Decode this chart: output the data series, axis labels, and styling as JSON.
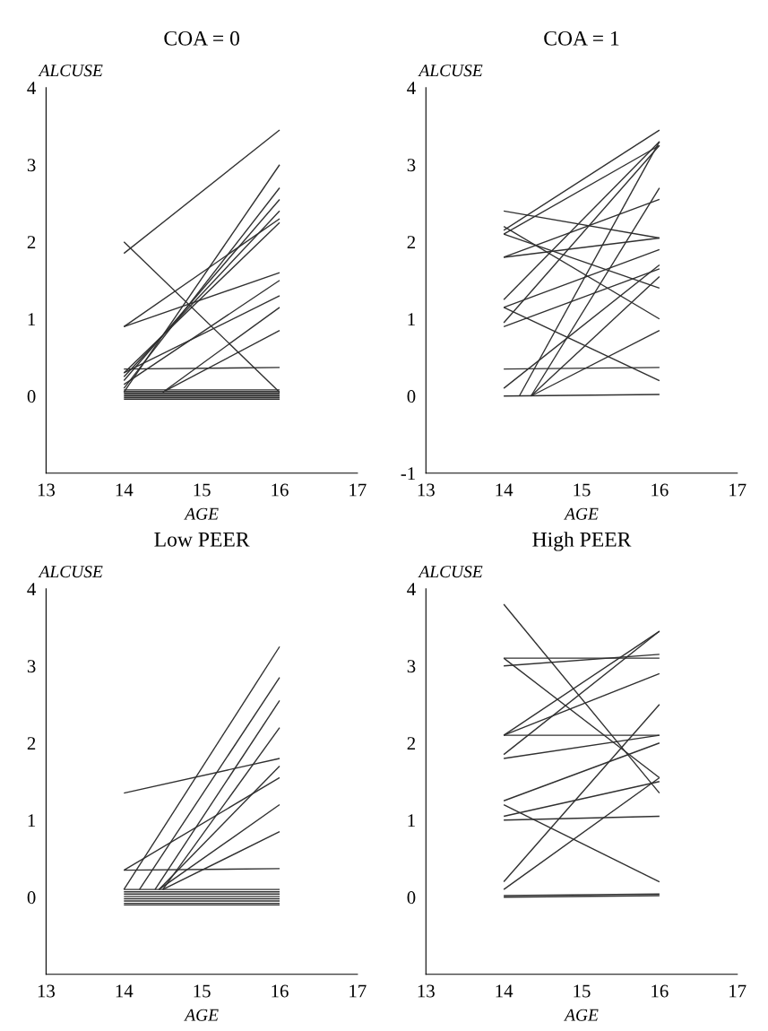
{
  "chart_data": [
    {
      "type": "line",
      "title": "COA = 0",
      "xlabel": "AGE",
      "ylabel": "ALCUSE",
      "color": "#303030",
      "xlim": [
        13,
        17
      ],
      "xticks": [
        13,
        14,
        15,
        16,
        17
      ],
      "ylim": [
        -1,
        4
      ],
      "yticks": [
        0,
        1,
        2,
        3,
        4
      ],
      "grid": false,
      "legend": false,
      "series": [
        {
          "x": [
            14,
            16
          ],
          "values": [
            1.85,
            3.45
          ]
        },
        {
          "x": [
            14,
            16
          ],
          "values": [
            2.0,
            0.05
          ]
        },
        {
          "x": [
            14,
            16
          ],
          "values": [
            0.9,
            1.6
          ]
        },
        {
          "x": [
            14,
            16
          ],
          "values": [
            0.9,
            2.3
          ]
        },
        {
          "x": [
            14,
            16
          ],
          "values": [
            0.35,
            0.37
          ]
        },
        {
          "x": [
            14,
            16
          ],
          "values": [
            0.05,
            3.0
          ]
        },
        {
          "x": [
            14,
            16
          ],
          "values": [
            0.1,
            2.7
          ]
        },
        {
          "x": [
            14,
            16
          ],
          "values": [
            0.2,
            2.55
          ]
        },
        {
          "x": [
            14,
            16
          ],
          "values": [
            0.25,
            2.4
          ]
        },
        {
          "x": [
            14,
            16
          ],
          "values": [
            0.3,
            2.25
          ]
        },
        {
          "x": [
            14,
            16
          ],
          "values": [
            0.3,
            1.3
          ]
        },
        {
          "x": [
            14,
            16
          ],
          "values": [
            0.15,
            1.5
          ]
        },
        {
          "x": [
            14.5,
            16
          ],
          "values": [
            0.05,
            1.15
          ]
        },
        {
          "x": [
            14.5,
            16
          ],
          "values": [
            0.05,
            0.85
          ]
        },
        {
          "x": [
            14,
            16
          ],
          "values": [
            0.0,
            0.0
          ]
        },
        {
          "x": [
            14,
            16
          ],
          "values": [
            0.02,
            0.02
          ]
        },
        {
          "x": [
            14,
            16
          ],
          "values": [
            0.04,
            0.04
          ]
        },
        {
          "x": [
            14,
            16
          ],
          "values": [
            0.06,
            0.06
          ]
        },
        {
          "x": [
            14,
            16
          ],
          "values": [
            0.08,
            0.08
          ]
        },
        {
          "x": [
            14,
            16
          ],
          "values": [
            -0.02,
            -0.02
          ]
        },
        {
          "x": [
            14,
            16
          ],
          "values": [
            -0.04,
            -0.04
          ]
        }
      ]
    },
    {
      "type": "line",
      "title": "COA = 1",
      "xlabel": "AGE",
      "ylabel": "ALCUSE",
      "color": "#303030",
      "xlim": [
        13,
        17
      ],
      "xticks": [
        13,
        14,
        15,
        16,
        17
      ],
      "ylim": [
        -1,
        4
      ],
      "yticks": [
        -1,
        0,
        1,
        2,
        3,
        4
      ],
      "grid": false,
      "legend": false,
      "series": [
        {
          "x": [
            14,
            16
          ],
          "values": [
            2.15,
            3.45
          ]
        },
        {
          "x": [
            14,
            16
          ],
          "values": [
            2.1,
            3.25
          ]
        },
        {
          "x": [
            14,
            16
          ],
          "values": [
            2.4,
            2.05
          ]
        },
        {
          "x": [
            14,
            16
          ],
          "values": [
            2.2,
            1.0
          ]
        },
        {
          "x": [
            14,
            16
          ],
          "values": [
            2.1,
            1.4
          ]
        },
        {
          "x": [
            14,
            16
          ],
          "values": [
            1.8,
            2.05
          ]
        },
        {
          "x": [
            14,
            16
          ],
          "values": [
            1.8,
            2.55
          ]
        },
        {
          "x": [
            14,
            16
          ],
          "values": [
            1.25,
            3.3
          ]
        },
        {
          "x": [
            14,
            16
          ],
          "values": [
            1.15,
            1.9
          ]
        },
        {
          "x": [
            14,
            16
          ],
          "values": [
            1.15,
            0.2
          ]
        },
        {
          "x": [
            14,
            16
          ],
          "values": [
            0.95,
            3.25
          ]
        },
        {
          "x": [
            14,
            16
          ],
          "values": [
            0.9,
            1.65
          ]
        },
        {
          "x": [
            14,
            16
          ],
          "values": [
            0.35,
            0.37
          ]
        },
        {
          "x": [
            14,
            16
          ],
          "values": [
            0.1,
            1.7
          ]
        },
        {
          "x": [
            14.2,
            16
          ],
          "values": [
            0.0,
            3.3
          ]
        },
        {
          "x": [
            14.35,
            16
          ],
          "values": [
            0.0,
            2.7
          ]
        },
        {
          "x": [
            14.35,
            16
          ],
          "values": [
            0.0,
            1.55
          ]
        },
        {
          "x": [
            14.35,
            16
          ],
          "values": [
            0.0,
            0.85
          ]
        },
        {
          "x": [
            14,
            16
          ],
          "values": [
            0.0,
            0.02
          ]
        }
      ]
    },
    {
      "type": "line",
      "title": "Low PEER",
      "xlabel": "AGE",
      "ylabel": "ALCUSE",
      "color": "#303030",
      "xlim": [
        13,
        17
      ],
      "xticks": [
        13,
        14,
        15,
        16,
        17
      ],
      "ylim": [
        -1,
        4
      ],
      "yticks": [
        0,
        1,
        2,
        3,
        4
      ],
      "grid": false,
      "legend": false,
      "series": [
        {
          "x": [
            14,
            16
          ],
          "values": [
            1.35,
            1.8
          ]
        },
        {
          "x": [
            14,
            16
          ],
          "values": [
            0.35,
            0.37
          ]
        },
        {
          "x": [
            14,
            16
          ],
          "values": [
            0.1,
            3.25
          ]
        },
        {
          "x": [
            14.2,
            16
          ],
          "values": [
            0.1,
            2.85
          ]
        },
        {
          "x": [
            14,
            16
          ],
          "values": [
            0.35,
            1.55
          ]
        },
        {
          "x": [
            14.4,
            16
          ],
          "values": [
            0.1,
            2.55
          ]
        },
        {
          "x": [
            14.5,
            16
          ],
          "values": [
            0.1,
            2.2
          ]
        },
        {
          "x": [
            14.45,
            16
          ],
          "values": [
            0.1,
            1.7
          ]
        },
        {
          "x": [
            14.45,
            16
          ],
          "values": [
            0.1,
            1.2
          ]
        },
        {
          "x": [
            14.5,
            16
          ],
          "values": [
            0.1,
            0.85
          ]
        },
        {
          "x": [
            14,
            16
          ],
          "values": [
            0.1,
            0.1
          ]
        },
        {
          "x": [
            14,
            16
          ],
          "values": [
            0.07,
            0.07
          ]
        },
        {
          "x": [
            14,
            16
          ],
          "values": [
            0.04,
            0.04
          ]
        },
        {
          "x": [
            14,
            16
          ],
          "values": [
            0.01,
            0.01
          ]
        },
        {
          "x": [
            14,
            16
          ],
          "values": [
            -0.02,
            -0.02
          ]
        },
        {
          "x": [
            14,
            16
          ],
          "values": [
            -0.05,
            -0.05
          ]
        },
        {
          "x": [
            14,
            16
          ],
          "values": [
            -0.08,
            -0.08
          ]
        },
        {
          "x": [
            14,
            16
          ],
          "values": [
            -0.1,
            -0.1
          ]
        }
      ]
    },
    {
      "type": "line",
      "title": "High PEER",
      "xlabel": "AGE",
      "ylabel": "ALCUSE",
      "color": "#303030",
      "xlim": [
        13,
        17
      ],
      "xticks": [
        13,
        14,
        15,
        16,
        17
      ],
      "ylim": [
        -1,
        4
      ],
      "yticks": [
        0,
        1,
        2,
        3,
        4
      ],
      "grid": false,
      "legend": false,
      "series": [
        {
          "x": [
            14,
            16
          ],
          "values": [
            3.8,
            1.35
          ]
        },
        {
          "x": [
            14,
            16
          ],
          "values": [
            3.1,
            1.55
          ]
        },
        {
          "x": [
            14,
            16
          ],
          "values": [
            3.1,
            3.1
          ]
        },
        {
          "x": [
            14,
            16
          ],
          "values": [
            3.0,
            3.15
          ]
        },
        {
          "x": [
            14,
            16
          ],
          "values": [
            2.1,
            3.45
          ]
        },
        {
          "x": [
            14,
            16
          ],
          "values": [
            2.1,
            2.9
          ]
        },
        {
          "x": [
            14,
            16
          ],
          "values": [
            2.1,
            2.1
          ]
        },
        {
          "x": [
            14,
            16
          ],
          "values": [
            1.85,
            3.45
          ]
        },
        {
          "x": [
            14,
            16
          ],
          "values": [
            1.8,
            2.1
          ]
        },
        {
          "x": [
            14,
            16
          ],
          "values": [
            1.25,
            2.0
          ]
        },
        {
          "x": [
            14,
            16
          ],
          "values": [
            1.2,
            0.2
          ]
        },
        {
          "x": [
            14,
            16
          ],
          "values": [
            1.05,
            1.5
          ]
        },
        {
          "x": [
            14,
            16
          ],
          "values": [
            1.0,
            1.05
          ]
        },
        {
          "x": [
            14,
            16
          ],
          "values": [
            0.2,
            2.5
          ]
        },
        {
          "x": [
            14,
            16
          ],
          "values": [
            0.1,
            1.55
          ]
        },
        {
          "x": [
            14,
            16
          ],
          "values": [
            0.0,
            0.02
          ]
        },
        {
          "x": [
            14,
            16
          ],
          "values": [
            0.02,
            0.04
          ]
        }
      ]
    }
  ]
}
